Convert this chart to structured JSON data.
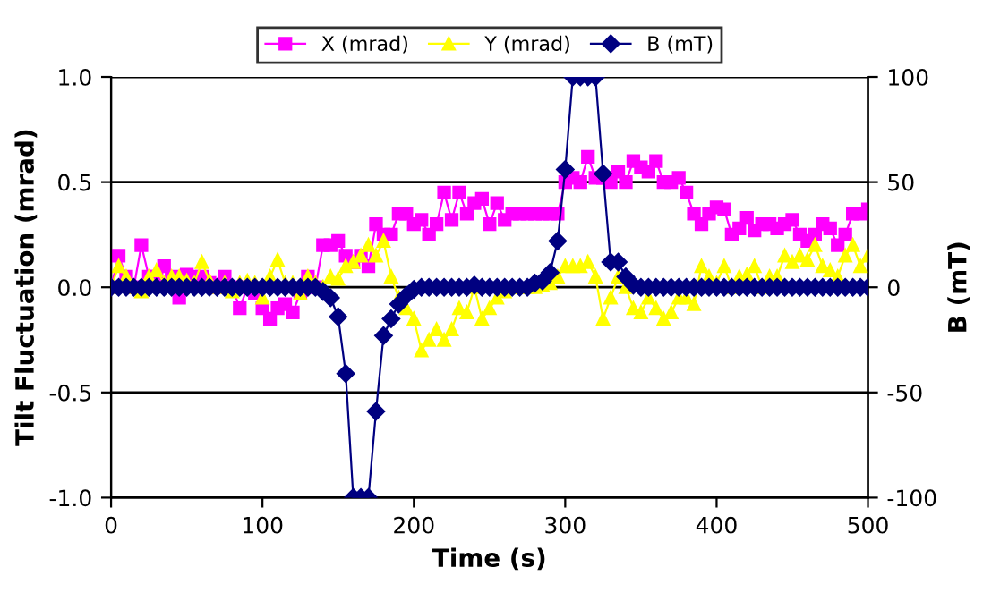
{
  "chart_data": {
    "type": "line",
    "xlabel": "Time (s)",
    "ylabel": "Tilt Fluctuation (mrad)",
    "y2label": "B (mT)",
    "x": [
      0,
      5,
      10,
      15,
      20,
      25,
      30,
      35,
      40,
      45,
      50,
      55,
      60,
      65,
      70,
      75,
      80,
      85,
      90,
      95,
      100,
      105,
      110,
      115,
      120,
      125,
      130,
      135,
      140,
      145,
      150,
      155,
      160,
      165,
      170,
      175,
      180,
      185,
      190,
      195,
      200,
      205,
      210,
      215,
      220,
      225,
      230,
      235,
      240,
      245,
      250,
      255,
      260,
      265,
      270,
      275,
      280,
      285,
      290,
      295,
      300,
      305,
      310,
      315,
      320,
      325,
      330,
      335,
      340,
      345,
      350,
      355,
      360,
      365,
      370,
      375,
      380,
      385,
      390,
      395,
      400,
      405,
      410,
      415,
      420,
      425,
      430,
      435,
      440,
      445,
      450,
      455,
      460,
      465,
      470,
      475,
      480,
      485,
      490,
      495,
      500
    ],
    "series": [
      {
        "name": "X (mrad)",
        "color": "#ff00ff",
        "marker": "square",
        "values": [
          0,
          0.15,
          0.05,
          0,
          0.2,
          0.05,
          0.05,
          0.1,
          0.05,
          -0.05,
          0.06,
          0.05,
          0.05,
          0.02,
          0,
          0.05,
          0,
          -0.1,
          0,
          -0.03,
          -0.1,
          -0.15,
          -0.1,
          -0.08,
          -0.12,
          -0.03,
          0.05,
          0,
          0.2,
          0.2,
          0.22,
          0.15,
          0.12,
          0.15,
          0.1,
          0.3,
          0.25,
          0.25,
          0.35,
          0.35,
          0.3,
          0.32,
          0.25,
          0.3,
          0.45,
          0.32,
          0.45,
          0.35,
          0.4,
          0.42,
          0.3,
          0.4,
          0.32,
          0.35,
          0.35,
          0.35,
          0.35,
          0.35,
          0.35,
          0.35,
          0.5,
          0.52,
          0.5,
          0.62,
          0.52,
          0.52,
          0.5,
          0.55,
          0.5,
          0.6,
          0.57,
          0.55,
          0.6,
          0.5,
          0.5,
          0.52,
          0.45,
          0.35,
          0.3,
          0.35,
          0.38,
          0.37,
          0.25,
          0.28,
          0.33,
          0.27,
          0.3,
          0.3,
          0.28,
          0.3,
          0.32,
          0.25,
          0.22,
          0.25,
          0.3,
          0.28,
          0.2,
          0.25,
          0.35,
          0.35,
          0.37
        ]
      },
      {
        "name": "Y (mrad)",
        "color": "#ffff00",
        "marker": "triangle",
        "values": [
          0,
          0.1,
          0.05,
          0,
          -0.02,
          0.05,
          0.08,
          0.02,
          0.05,
          0.05,
          0.03,
          0.02,
          0.12,
          0.03,
          0,
          0.02,
          -0.02,
          0.02,
          0.03,
          0.02,
          -0.05,
          0.05,
          0.13,
          0.02,
          0.02,
          -0.03,
          0.05,
          0.02,
          0,
          0.05,
          0.04,
          0.1,
          0.12,
          0.15,
          0.2,
          0.15,
          0.22,
          0.05,
          -0.05,
          -0.1,
          -0.15,
          -0.3,
          -0.25,
          -0.2,
          -0.25,
          -0.2,
          -0.1,
          -0.12,
          0,
          -0.15,
          -0.1,
          -0.05,
          -0.02,
          0,
          0,
          0,
          0,
          0.01,
          0.02,
          0.05,
          0.1,
          0.1,
          0.1,
          0.12,
          0.05,
          -0.15,
          -0.05,
          0.05,
          0,
          -0.1,
          -0.12,
          -0.05,
          -0.1,
          -0.15,
          -0.12,
          -0.05,
          -0.05,
          -0.08,
          0.1,
          0.05,
          0.02,
          0.1,
          0,
          0.05,
          0.06,
          0.1,
          0,
          0.05,
          0.05,
          0.15,
          0.12,
          0.15,
          0.13,
          0.2,
          0.1,
          0.08,
          0.05,
          0.15,
          0.2,
          0.1,
          0.15
        ]
      },
      {
        "name": "B (mT)",
        "color": "#000080",
        "marker": "diamond",
        "axis": "y2",
        "values": [
          0,
          0,
          0,
          0,
          0,
          0,
          0,
          0,
          0,
          0,
          0,
          0,
          0,
          0,
          0,
          0,
          0,
          0,
          0,
          0,
          0,
          0,
          0,
          0,
          0,
          0,
          0,
          0,
          -2,
          -5,
          -14,
          -41,
          -100,
          -100,
          -100,
          -59,
          -23,
          -15,
          -8,
          -4,
          -1,
          0,
          0,
          0,
          0,
          0,
          0,
          0,
          1,
          0,
          0,
          0,
          0,
          0,
          0,
          0,
          2,
          3,
          7,
          22,
          56,
          100,
          100,
          100,
          100,
          54,
          12,
          12,
          5,
          1,
          0,
          0,
          0,
          0,
          0,
          0,
          0,
          0,
          0,
          0,
          0,
          0,
          0,
          0,
          0,
          0,
          0,
          0,
          0,
          0,
          0,
          0,
          0,
          0,
          0,
          0,
          0,
          0,
          0,
          0,
          0
        ]
      }
    ],
    "xlim": [
      0,
      500
    ],
    "xticks": [
      0,
      100,
      200,
      300,
      400,
      500
    ],
    "ylim": [
      -1.0,
      1.0
    ],
    "yticks": [
      {
        "value": -1.0,
        "label": "-1.0"
      },
      {
        "value": -0.5,
        "label": "-0.5"
      },
      {
        "value": 0.0,
        "label": "0.0"
      },
      {
        "value": 0.5,
        "label": "0.5"
      },
      {
        "value": 1.0,
        "label": "1.0"
      }
    ],
    "y2lim": [
      -100,
      100
    ],
    "y2ticks": [
      -100,
      -50,
      0,
      50,
      100
    ],
    "grid": "y",
    "legend": "top",
    "line_style": "solid"
  }
}
